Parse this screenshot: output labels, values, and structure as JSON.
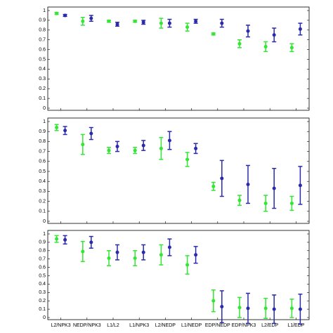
{
  "chart_data": [
    {
      "type": "errorbar",
      "categories": [
        null,
        null,
        null,
        null,
        null,
        null,
        null,
        null,
        null,
        null
      ],
      "series": [
        {
          "color": "#33e633",
          "values": [
            0.97,
            0.89,
            0.89,
            0.89,
            0.87,
            0.83,
            0.76,
            0.66,
            0.63,
            0.62
          ],
          "errors": [
            0.01,
            0.04,
            0.01,
            0.01,
            0.05,
            0.04,
            0.01,
            0.04,
            0.05,
            0.04
          ]
        },
        {
          "color": "#2a2aaa",
          "values": [
            0.95,
            0.92,
            0.86,
            0.88,
            0.87,
            0.89,
            0.87,
            0.79,
            0.75,
            0.81
          ],
          "errors": [
            0.01,
            0.03,
            0.02,
            0.02,
            0.04,
            0.02,
            0.04,
            0.06,
            0.07,
            0.06
          ]
        }
      ],
      "ylim": [
        0,
        1
      ],
      "yticks": [
        0,
        0.1,
        0.2,
        0.3,
        0.4,
        0.5,
        0.6,
        0.7,
        0.8,
        0.9,
        1
      ]
    },
    {
      "type": "errorbar",
      "categories": [
        null,
        null,
        null,
        null,
        null,
        null,
        null,
        null,
        null,
        null
      ],
      "series": [
        {
          "color": "#33e633",
          "values": [
            0.94,
            0.77,
            0.71,
            0.71,
            0.73,
            0.62,
            0.35,
            0.21,
            0.18,
            0.18
          ],
          "errors": [
            0.03,
            0.1,
            0.03,
            0.03,
            0.11,
            0.07,
            0.04,
            0.05,
            0.08,
            0.07
          ]
        },
        {
          "color": "#2a2aaa",
          "values": [
            0.91,
            0.88,
            0.75,
            0.76,
            0.81,
            0.73,
            0.43,
            0.37,
            0.33,
            0.36
          ],
          "errors": [
            0.04,
            0.06,
            0.05,
            0.05,
            0.09,
            0.05,
            0.18,
            0.19,
            0.2,
            0.19
          ]
        }
      ],
      "ylim": [
        0,
        1
      ],
      "yticks": [
        0,
        0.1,
        0.2,
        0.3,
        0.4,
        0.5,
        0.6,
        0.7,
        0.8,
        0.9,
        1
      ]
    },
    {
      "type": "errorbar",
      "categories": [
        "L2/NPK3",
        "NEDP/NPK3",
        "L1/L2",
        "L1/NPK3",
        "L2/NEDP",
        "L1/NEDP",
        "EDP/NEDP",
        "EDP/NPK3",
        "L2/EDP",
        "L1/EDP"
      ],
      "series": [
        {
          "color": "#33e633",
          "values": [
            0.94,
            0.79,
            0.71,
            0.71,
            0.75,
            0.63,
            0.2,
            0.12,
            0.11,
            0.11
          ],
          "errors": [
            0.04,
            0.12,
            0.09,
            0.09,
            0.12,
            0.11,
            0.13,
            0.12,
            0.12,
            0.11
          ]
        },
        {
          "color": "#2a2aaa",
          "values": [
            0.93,
            0.9,
            0.78,
            0.78,
            0.84,
            0.75,
            0.13,
            0.11,
            0.1,
            0.1
          ],
          "errors": [
            0.05,
            0.07,
            0.09,
            0.09,
            0.1,
            0.1,
            0.19,
            0.18,
            0.17,
            0.18
          ]
        }
      ],
      "ylim": [
        0,
        1
      ],
      "yticks": [
        0,
        0.1,
        0.2,
        0.3,
        0.4,
        0.5,
        0.6,
        0.7,
        0.8,
        0.9,
        1
      ]
    }
  ]
}
